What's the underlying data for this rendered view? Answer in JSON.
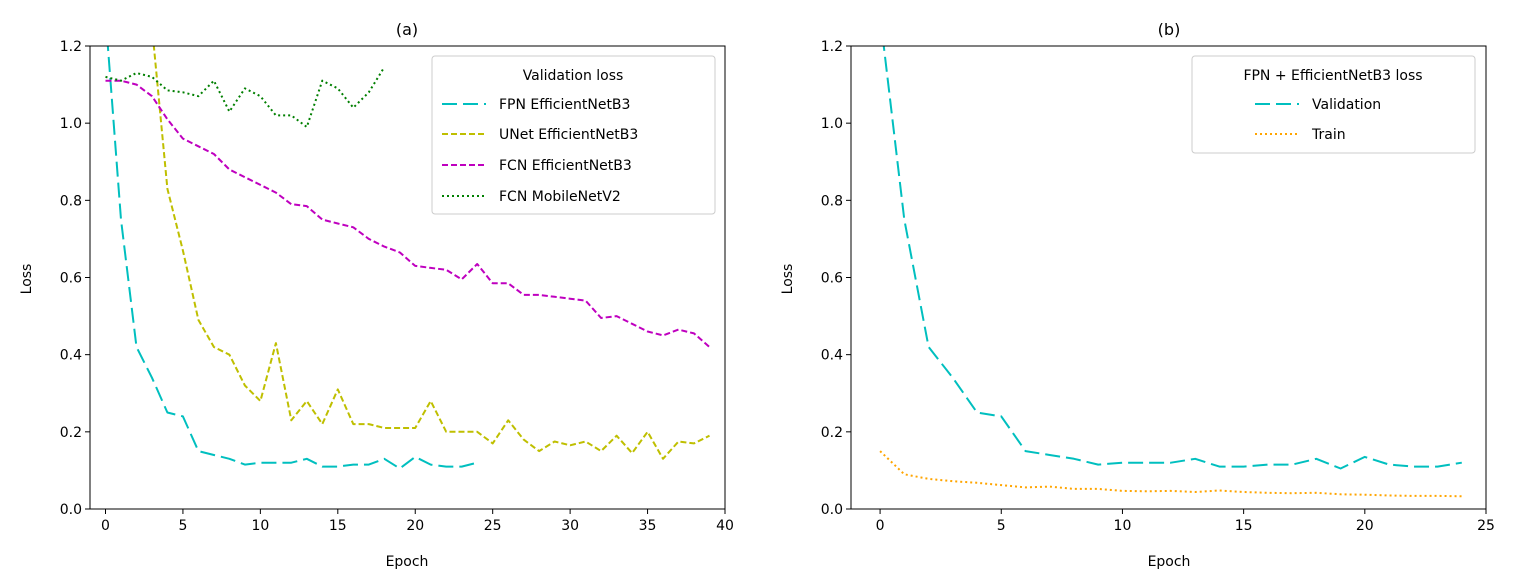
{
  "chart_data": [
    {
      "type": "line",
      "title": "(a)",
      "xlabel": "Epoch",
      "ylabel": "Loss",
      "xlim": [
        -1,
        40
      ],
      "ylim": [
        0,
        1.2
      ],
      "xticks": [
        "0",
        "5",
        "10",
        "15",
        "20",
        "25",
        "30",
        "35",
        "40"
      ],
      "yticks": [
        "0.0",
        "0.2",
        "0.4",
        "0.6",
        "0.8",
        "1.0",
        "1.2"
      ],
      "grid": false,
      "legend": {
        "title": "Validation loss",
        "placement": "top-right"
      },
      "series": [
        {
          "name": "FPN EfficientNetB3",
          "color": "#00bfbf",
          "dash": "dashed",
          "x": [
            0,
            1,
            2,
            3,
            4,
            5,
            6,
            7,
            8,
            9,
            10,
            11,
            12,
            13,
            14,
            15,
            16,
            17,
            18,
            19,
            20,
            21,
            22,
            23,
            24
          ],
          "y": [
            1.28,
            0.75,
            0.42,
            0.34,
            0.25,
            0.24,
            0.15,
            0.14,
            0.13,
            0.115,
            0.12,
            0.12,
            0.12,
            0.13,
            0.11,
            0.11,
            0.115,
            0.115,
            0.13,
            0.105,
            0.135,
            0.115,
            0.11,
            0.11,
            0.12
          ]
        },
        {
          "name": "UNet EfficientNetB3",
          "color": "#bfbf00",
          "dash": "dashed-short",
          "x": [
            3,
            4,
            5,
            6,
            7,
            8,
            9,
            10,
            11,
            12,
            13,
            14,
            15,
            16,
            17,
            18,
            19,
            20,
            21,
            22,
            23,
            24,
            25,
            26,
            27,
            28,
            29,
            30,
            31,
            32,
            33,
            34,
            35,
            36,
            37,
            38,
            39
          ],
          "y": [
            1.25,
            0.83,
            0.67,
            0.49,
            0.42,
            0.4,
            0.32,
            0.28,
            0.43,
            0.23,
            0.28,
            0.22,
            0.31,
            0.22,
            0.22,
            0.21,
            0.21,
            0.21,
            0.28,
            0.2,
            0.2,
            0.2,
            0.17,
            0.23,
            0.18,
            0.15,
            0.175,
            0.165,
            0.175,
            0.15,
            0.19,
            0.145,
            0.2,
            0.13,
            0.175,
            0.17,
            0.19
          ]
        },
        {
          "name": "FCN EfficientNetB3",
          "color": "#bf00bf",
          "dash": "dashed-short",
          "x": [
            0,
            1,
            2,
            3,
            4,
            5,
            6,
            7,
            8,
            9,
            10,
            11,
            12,
            13,
            14,
            15,
            16,
            17,
            18,
            19,
            20,
            21,
            22,
            23,
            24,
            25,
            26,
            27,
            28,
            29,
            30,
            31,
            32,
            33,
            34,
            35,
            36,
            37,
            38,
            39
          ],
          "y": [
            1.11,
            1.11,
            1.1,
            1.07,
            1.01,
            0.96,
            0.94,
            0.92,
            0.88,
            0.86,
            0.84,
            0.82,
            0.79,
            0.785,
            0.75,
            0.74,
            0.73,
            0.7,
            0.68,
            0.665,
            0.63,
            0.625,
            0.62,
            0.595,
            0.635,
            0.585,
            0.585,
            0.555,
            0.555,
            0.55,
            0.545,
            0.54,
            0.495,
            0.5,
            0.48,
            0.46,
            0.45,
            0.465,
            0.455,
            0.42
          ]
        },
        {
          "name": "FCN MobileNetV2",
          "color": "#007f00",
          "dash": "dotted",
          "x": [
            0,
            1,
            2,
            3,
            4,
            5,
            6,
            7,
            8,
            9,
            10,
            11,
            12,
            13,
            14,
            15,
            16,
            17,
            18
          ],
          "y": [
            1.12,
            1.11,
            1.13,
            1.12,
            1.085,
            1.08,
            1.07,
            1.11,
            1.03,
            1.09,
            1.07,
            1.02,
            1.02,
            0.99,
            1.11,
            1.09,
            1.04,
            1.08,
            1.145
          ]
        }
      ]
    },
    {
      "type": "line",
      "title": "(b)",
      "xlabel": "Epoch",
      "ylabel": "Loss",
      "xlim": [
        -1.2,
        25
      ],
      "ylim": [
        0,
        1.2
      ],
      "xticks": [
        "0",
        "5",
        "10",
        "15",
        "20",
        "25"
      ],
      "yticks": [
        "0.0",
        "0.2",
        "0.4",
        "0.6",
        "0.8",
        "1.0",
        "1.2"
      ],
      "grid": false,
      "legend": {
        "title": "FPN + EfficientNetB3 loss",
        "placement": "top-right"
      },
      "series": [
        {
          "name": "Validation",
          "color": "#00bfbf",
          "dash": "dashed",
          "x": [
            0,
            1,
            2,
            3,
            4,
            5,
            6,
            7,
            8,
            9,
            10,
            11,
            12,
            13,
            14,
            15,
            16,
            17,
            18,
            19,
            20,
            21,
            22,
            23,
            24
          ],
          "y": [
            1.28,
            0.75,
            0.42,
            0.34,
            0.25,
            0.24,
            0.15,
            0.14,
            0.13,
            0.115,
            0.12,
            0.12,
            0.12,
            0.13,
            0.11,
            0.11,
            0.115,
            0.115,
            0.13,
            0.105,
            0.135,
            0.115,
            0.11,
            0.11,
            0.12
          ]
        },
        {
          "name": "Train",
          "color": "#ffa500",
          "dash": "dotted",
          "x": [
            0,
            1,
            2,
            3,
            4,
            5,
            6,
            7,
            8,
            9,
            10,
            11,
            12,
            13,
            14,
            15,
            16,
            17,
            18,
            19,
            20,
            21,
            22,
            23,
            24
          ],
          "y": [
            0.15,
            0.09,
            0.078,
            0.072,
            0.068,
            0.062,
            0.056,
            0.058,
            0.052,
            0.052,
            0.047,
            0.046,
            0.047,
            0.044,
            0.048,
            0.044,
            0.042,
            0.041,
            0.042,
            0.038,
            0.037,
            0.035,
            0.034,
            0.034,
            0.033
          ]
        }
      ]
    }
  ]
}
